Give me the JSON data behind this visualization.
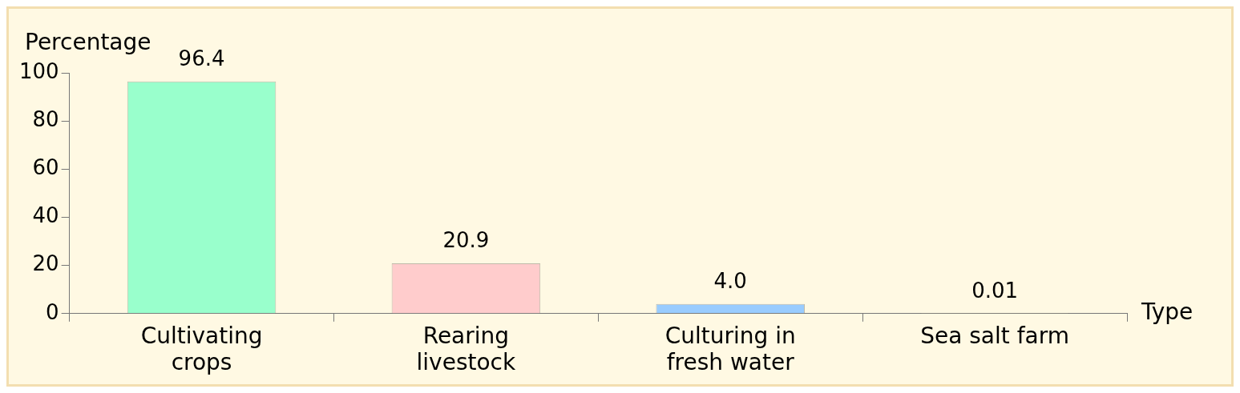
{
  "chart_data": {
    "type": "bar",
    "xlabel": "Type",
    "ylabel": "Percentage",
    "categories": [
      "Cultivating crops",
      "Rearing livestock",
      "Culturing in fresh water",
      "Sea salt farm"
    ],
    "values": [
      96.4,
      20.9,
      4.0,
      0.01
    ],
    "colors": [
      "#99ffcc",
      "#ffcccc",
      "#99ccff",
      "#cccc99"
    ],
    "value_labels": [
      "96.4",
      "20.9",
      "4.0",
      "0.01"
    ],
    "ylim": [
      0,
      100
    ],
    "yticks": [
      0,
      20,
      40,
      60,
      80,
      100
    ],
    "grid": false,
    "legend": false
  }
}
